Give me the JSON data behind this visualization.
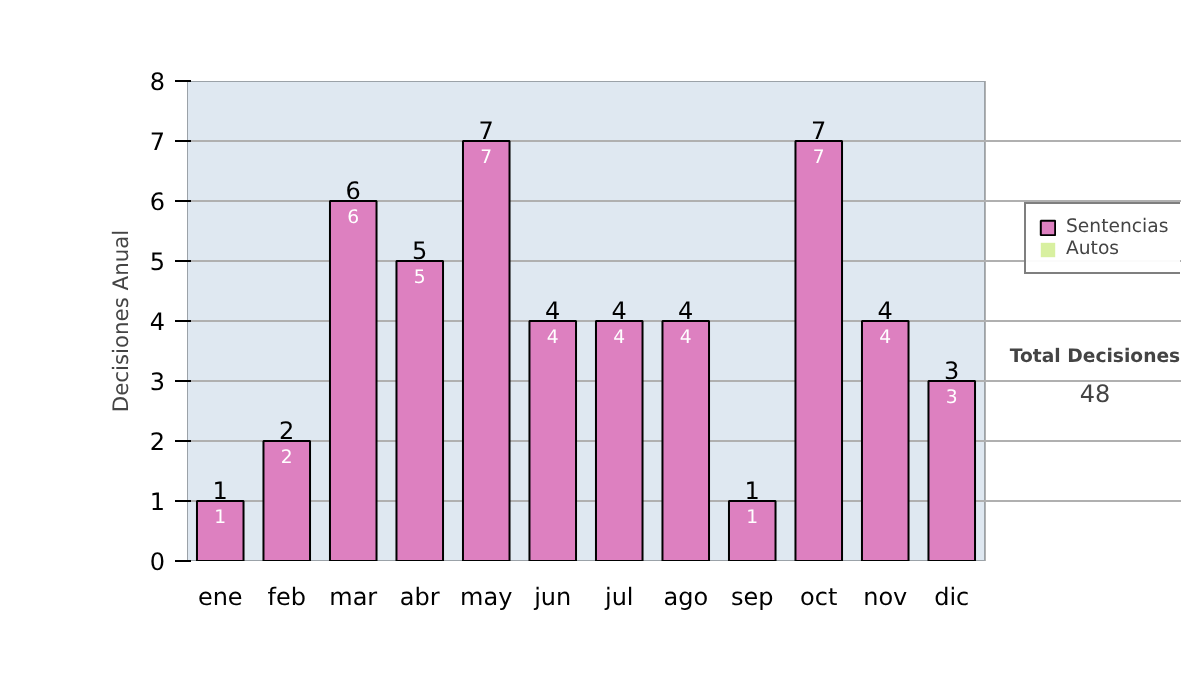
{
  "chart_data": {
    "type": "bar",
    "stacked": true,
    "ylabel": "Decisiones Anual",
    "categories": [
      "ene",
      "feb",
      "mar",
      "abr",
      "may",
      "jun",
      "jul",
      "ago",
      "sep",
      "oct",
      "nov",
      "dic"
    ],
    "series": [
      {
        "name": "Sentencias",
        "color": "#dd80c0",
        "values": [
          1,
          2,
          6,
          5,
          7,
          4,
          4,
          4,
          1,
          7,
          4,
          3
        ],
        "value_labels": [
          "1",
          "2",
          "6",
          "5",
          "7",
          "4",
          "4",
          "4",
          "1",
          "7",
          "4",
          "3"
        ]
      },
      {
        "name": "Autos",
        "color": "#d8f0a0",
        "values": [
          0,
          0,
          0,
          0,
          0,
          0,
          0,
          0,
          0,
          0,
          0,
          0
        ]
      }
    ],
    "totals": [
      "1",
      "2",
      "6",
      "5",
      "7",
      "4",
      "4",
      "4",
      "1",
      "7",
      "4",
      "3"
    ],
    "ylim": [
      0,
      8
    ],
    "yticks": [
      0,
      1,
      2,
      3,
      4,
      5,
      6,
      7,
      8
    ],
    "grid": "y",
    "legend": "right",
    "annotations": [
      "Total Decisiones",
      "48"
    ]
  }
}
